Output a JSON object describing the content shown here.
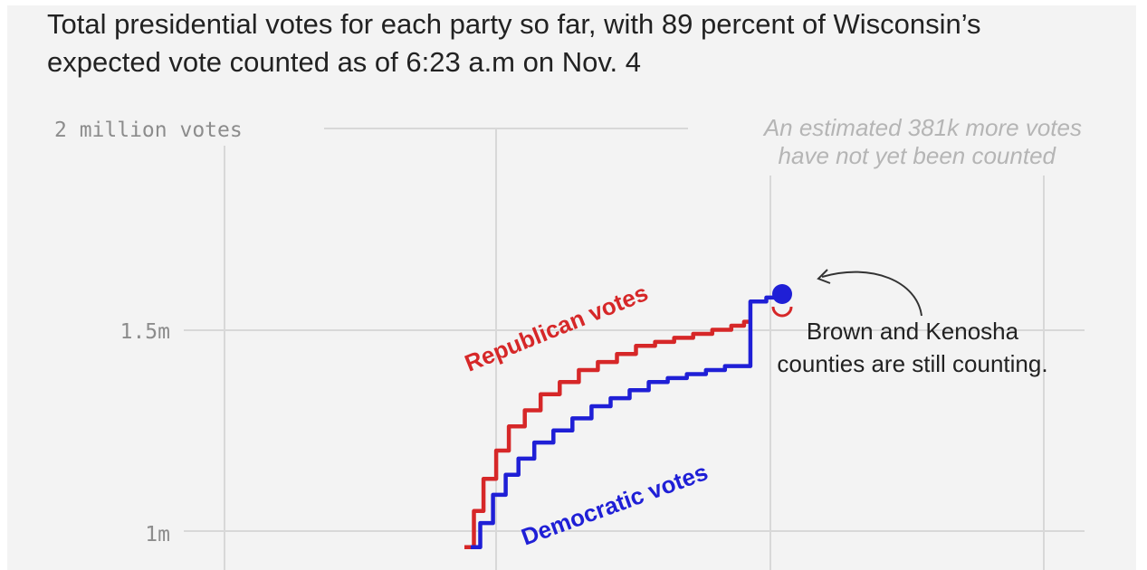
{
  "chart_data": {
    "type": "line",
    "title": "Total presidential votes for each party so far, with 89 percent of Wisconsin’s expected vote counted as of 6:23 a.m on Nov. 4",
    "y_tick_labels": [
      "2 million votes",
      "1.5m",
      "1m"
    ],
    "ylim": [
      0.95,
      2.0
    ],
    "annotations": {
      "uncounted": [
        "An estimated 381k more votes",
        "have not yet been counted"
      ],
      "callout": [
        "Brown and Kenosha",
        "counties are still counting."
      ]
    },
    "grid": true,
    "series": [
      {
        "name": "Republican votes",
        "color": "#d62728",
        "x": [
          0.0,
          0.03,
          0.06,
          0.1,
          0.14,
          0.19,
          0.24,
          0.3,
          0.36,
          0.42,
          0.48,
          0.54,
          0.6,
          0.66,
          0.72,
          0.78,
          0.84,
          0.88,
          0.9
        ],
        "y": [
          0.96,
          1.05,
          1.13,
          1.2,
          1.26,
          1.3,
          1.34,
          1.37,
          1.4,
          1.42,
          1.44,
          1.46,
          1.47,
          1.48,
          1.49,
          1.5,
          1.51,
          1.52,
          1.52
        ]
      },
      {
        "name": "Democratic votes",
        "color": "#1f1fd6",
        "x": [
          0.02,
          0.05,
          0.09,
          0.13,
          0.17,
          0.22,
          0.28,
          0.34,
          0.4,
          0.46,
          0.52,
          0.58,
          0.64,
          0.7,
          0.76,
          0.82,
          0.86,
          0.9,
          0.9,
          0.95,
          1.0
        ],
        "y": [
          0.96,
          1.02,
          1.09,
          1.14,
          1.18,
          1.22,
          1.25,
          1.28,
          1.31,
          1.33,
          1.35,
          1.37,
          1.38,
          1.39,
          1.4,
          1.41,
          1.41,
          1.41,
          1.57,
          1.58,
          1.58
        ]
      }
    ]
  }
}
